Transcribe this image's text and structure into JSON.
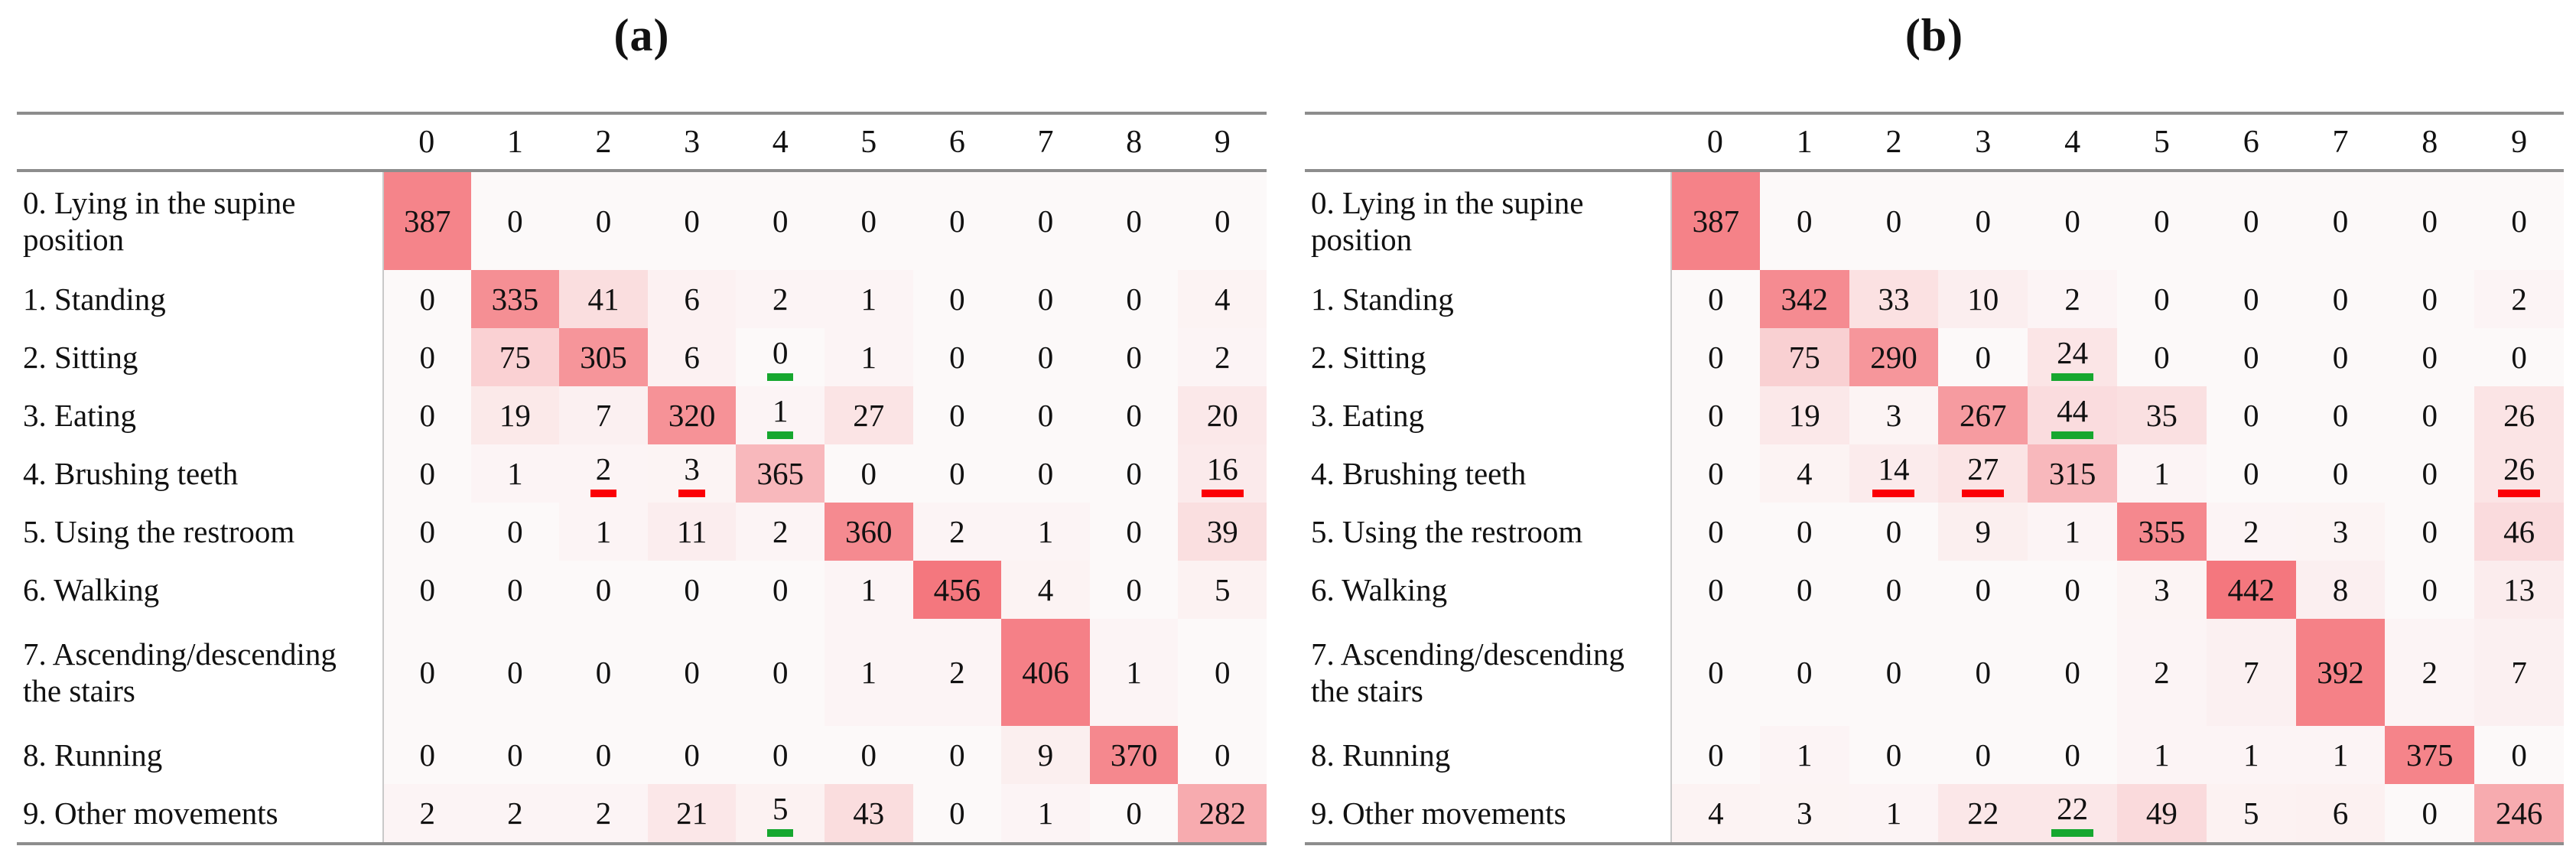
{
  "colors": {
    "heat_low": "#fcf9f9",
    "heat_high": "#f4777e",
    "underline_green": "#16a72f",
    "underline_red": "#fb0006",
    "rule_gray": "#8d8d8d",
    "divider_gray": "#c9c9c9"
  },
  "chart_data": [
    {
      "type": "heatmap",
      "title": "(a)",
      "col_labels": [
        "0",
        "1",
        "2",
        "3",
        "4",
        "5",
        "6",
        "7",
        "8",
        "9"
      ],
      "row_labels": [
        "0. Lying in the supine position",
        "1. Standing",
        "2. Sitting",
        "3. Eating",
        "4. Brushing teeth",
        "5. Using the restroom",
        "6. Walking",
        "7. Ascending/descending the stairs",
        "8. Running",
        "9. Other movements"
      ],
      "values": [
        [
          387,
          0,
          0,
          0,
          0,
          0,
          0,
          0,
          0,
          0
        ],
        [
          0,
          335,
          41,
          6,
          2,
          1,
          0,
          0,
          0,
          4
        ],
        [
          0,
          75,
          305,
          6,
          0,
          1,
          0,
          0,
          0,
          2
        ],
        [
          0,
          19,
          7,
          320,
          1,
          27,
          0,
          0,
          0,
          20
        ],
        [
          0,
          1,
          2,
          3,
          365,
          0,
          0,
          0,
          0,
          16
        ],
        [
          0,
          0,
          1,
          11,
          2,
          360,
          2,
          1,
          0,
          39
        ],
        [
          0,
          0,
          0,
          0,
          0,
          1,
          456,
          4,
          0,
          5
        ],
        [
          0,
          0,
          0,
          0,
          0,
          1,
          2,
          406,
          1,
          0
        ],
        [
          0,
          0,
          0,
          0,
          0,
          0,
          0,
          9,
          370,
          0
        ],
        [
          2,
          2,
          2,
          21,
          5,
          43,
          0,
          1,
          0,
          282
        ]
      ],
      "max_value": 456,
      "underlines": [
        {
          "row": 2,
          "col": 4,
          "color": "green"
        },
        {
          "row": 3,
          "col": 4,
          "color": "green"
        },
        {
          "row": 9,
          "col": 4,
          "color": "green"
        },
        {
          "row": 4,
          "col": 2,
          "color": "red"
        },
        {
          "row": 4,
          "col": 3,
          "color": "red"
        },
        {
          "row": 4,
          "col": 9,
          "color": "red"
        }
      ],
      "shade_overrides": {
        "4,4": 0.5,
        "9,9": 0.6
      }
    },
    {
      "type": "heatmap",
      "title": "(b)",
      "col_labels": [
        "0",
        "1",
        "2",
        "3",
        "4",
        "5",
        "6",
        "7",
        "8",
        "9"
      ],
      "row_labels": [
        "0. Lying in the supine position",
        "1. Standing",
        "2. Sitting",
        "3. Eating",
        "4. Brushing teeth",
        "5. Using the restroom",
        "6. Walking",
        "7. Ascending/descending the stairs",
        "8. Running",
        "9. Other movements"
      ],
      "values": [
        [
          387,
          0,
          0,
          0,
          0,
          0,
          0,
          0,
          0,
          0
        ],
        [
          0,
          342,
          33,
          10,
          2,
          0,
          0,
          0,
          0,
          2
        ],
        [
          0,
          75,
          290,
          0,
          24,
          0,
          0,
          0,
          0,
          0
        ],
        [
          0,
          19,
          3,
          267,
          44,
          35,
          0,
          0,
          0,
          26
        ],
        [
          0,
          4,
          14,
          27,
          315,
          1,
          0,
          0,
          0,
          26
        ],
        [
          0,
          0,
          0,
          9,
          1,
          355,
          2,
          3,
          0,
          46
        ],
        [
          0,
          0,
          0,
          0,
          0,
          3,
          442,
          8,
          0,
          13
        ],
        [
          0,
          0,
          0,
          0,
          0,
          2,
          7,
          392,
          2,
          7
        ],
        [
          0,
          1,
          0,
          0,
          0,
          1,
          1,
          1,
          375,
          0
        ],
        [
          4,
          3,
          1,
          22,
          22,
          49,
          5,
          6,
          0,
          246
        ]
      ],
      "max_value": 442,
      "underlines": [
        {
          "row": 2,
          "col": 4,
          "color": "green"
        },
        {
          "row": 3,
          "col": 4,
          "color": "green"
        },
        {
          "row": 9,
          "col": 4,
          "color": "green"
        },
        {
          "row": 4,
          "col": 2,
          "color": "red"
        },
        {
          "row": 4,
          "col": 3,
          "color": "red"
        },
        {
          "row": 4,
          "col": 9,
          "color": "red"
        }
      ],
      "shade_overrides": {
        "4,4": 0.5,
        "9,9": 0.6
      }
    }
  ]
}
